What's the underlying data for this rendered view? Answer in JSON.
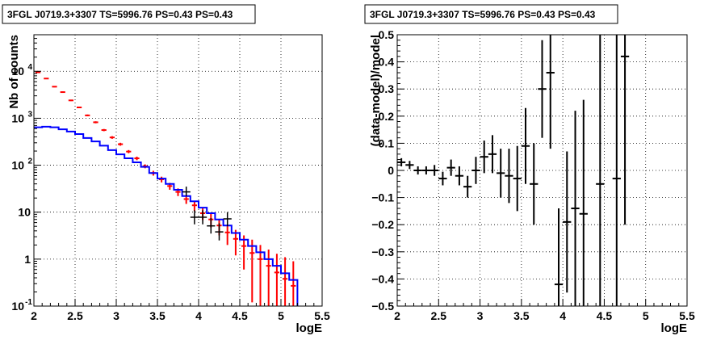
{
  "chart_data": [
    {
      "type": "line",
      "title": "3FGL J0719.3+3307 TS=5996.76 PS=0.43 PS=0.43",
      "xlabel": "logE",
      "ylabel": "Nb of counts",
      "xlim": [
        2,
        5.5
      ],
      "ylim": [
        0.1,
        60000
      ],
      "yscale": "log",
      "grid": true,
      "x_ticks": [
        "2",
        "2.5",
        "3",
        "3.5",
        "4",
        "4.5",
        "5",
        "5.5"
      ],
      "y_ticks": [
        {
          "value": 0.1,
          "base": "10",
          "exp": "-1"
        },
        {
          "value": 1,
          "base": "1",
          "exp": ""
        },
        {
          "value": 10,
          "base": "10",
          "exp": ""
        },
        {
          "value": 100,
          "base": "10",
          "exp": "2"
        },
        {
          "value": 1000,
          "base": "10",
          "exp": "3"
        },
        {
          "value": 10000,
          "base": "10",
          "exp": "4"
        }
      ],
      "colors": {
        "model": "#ff0000",
        "source": "#0000ff",
        "data": "#000000"
      },
      "bin_edges": [
        2.0,
        2.1,
        2.2,
        2.3,
        2.4,
        2.5,
        2.6,
        2.7,
        2.8,
        2.9,
        3.0,
        3.1,
        3.2,
        3.3,
        3.4,
        3.5,
        3.6,
        3.7,
        3.8,
        3.9,
        4.0,
        4.1,
        4.2,
        4.3,
        4.4,
        4.5,
        4.6,
        4.7,
        4.8,
        4.9,
        5.0,
        5.1,
        5.2
      ],
      "series": [
        {
          "role": "model",
          "x": [
            2.05,
            2.15,
            2.25,
            2.35,
            2.45,
            2.55,
            2.65,
            2.75,
            2.85,
            2.95,
            3.05,
            3.15,
            3.25,
            3.35,
            3.45,
            3.55,
            3.65,
            3.75,
            3.85,
            3.95,
            4.05,
            4.15,
            4.25,
            4.35,
            4.45,
            4.55,
            4.65,
            4.75,
            4.85,
            4.95,
            5.05,
            5.15
          ],
          "values": [
            9500,
            7000,
            4700,
            3600,
            2400,
            1700,
            1150,
            820,
            560,
            390,
            280,
            195,
            140,
            95,
            68,
            50,
            36,
            27,
            19,
            14,
            9.5,
            7,
            5.2,
            3.7,
            2.7,
            1.9,
            1.35,
            1.0,
            0.72,
            0.52,
            0.38,
            0.27
          ],
          "err_low": [
            9200,
            6800,
            4550,
            3480,
            2320,
            1640,
            1100,
            780,
            530,
            365,
            260,
            180,
            128,
            86,
            60,
            43,
            30,
            22,
            15,
            10.5,
            6.8,
            4.7,
            3.2,
            2.0,
            1.2,
            0.6,
            0.12,
            0.1,
            0.1,
            0.1,
            0.1,
            0.1
          ],
          "err_high": [
            9800,
            7200,
            4850,
            3720,
            2480,
            1760,
            1200,
            860,
            590,
            415,
            300,
            210,
            152,
            104,
            76,
            57,
            42,
            32,
            23,
            17.5,
            12.2,
            9.3,
            7.2,
            5.4,
            4.2,
            3.2,
            2.6,
            2.0,
            1.6,
            1.3,
            1.1,
            0.9
          ]
        },
        {
          "role": "source",
          "values": [
            640,
            660,
            640,
            580,
            520,
            460,
            380,
            320,
            260,
            210,
            170,
            140,
            115,
            92,
            68,
            52,
            40,
            30,
            22,
            17,
            12.5,
            9.5,
            7,
            5.2,
            3.6,
            2.6,
            1.9,
            1.4,
            1.0,
            0.72,
            0.5,
            0.36
          ]
        },
        {
          "role": "data",
          "x": [
            3.85,
            3.95,
            4.05,
            4.15,
            4.25,
            4.35
          ],
          "values": [
            27,
            7.8,
            7.8,
            5.1,
            3.8,
            7.2
          ],
          "err_low": [
            22,
            5.5,
            5.5,
            3.5,
            2.5,
            5
          ],
          "err_high": [
            35,
            11,
            11,
            7.5,
            5.8,
            10
          ]
        }
      ]
    },
    {
      "type": "scatter",
      "title": "3FGL J0719.3+3307 TS=5996.76 PS=0.43 PS=0.43",
      "xlabel": "logE",
      "ylabel": "(data-model)/model",
      "xlim": [
        2,
        5.5
      ],
      "ylim": [
        -0.5,
        0.5
      ],
      "grid": true,
      "x_ticks": [
        "2",
        "2.5",
        "3",
        "3.5",
        "4",
        "4.5",
        "5",
        "5.5"
      ],
      "y_ticks": [
        "−0.5",
        "−0.4",
        "−0.3",
        "−0.2",
        "−0.1",
        "0",
        "0.1",
        "0.2",
        "0.3",
        "0.4",
        "0.5"
      ],
      "color": "#000000",
      "points": [
        {
          "x": 2.05,
          "y": 0.03,
          "lo": 0.015,
          "hi": 0.045
        },
        {
          "x": 2.15,
          "y": 0.02,
          "lo": 0.005,
          "hi": 0.035
        },
        {
          "x": 2.25,
          "y": 0.0,
          "lo": -0.015,
          "hi": 0.015
        },
        {
          "x": 2.35,
          "y": 0.0,
          "lo": -0.015,
          "hi": 0.015
        },
        {
          "x": 2.45,
          "y": 0.0,
          "lo": -0.02,
          "hi": 0.02
        },
        {
          "x": 2.55,
          "y": -0.03,
          "lo": -0.055,
          "hi": -0.005
        },
        {
          "x": 2.65,
          "y": 0.01,
          "lo": -0.02,
          "hi": 0.04
        },
        {
          "x": 2.75,
          "y": -0.02,
          "lo": -0.055,
          "hi": 0.015
        },
        {
          "x": 2.85,
          "y": -0.06,
          "lo": -0.1,
          "hi": -0.02
        },
        {
          "x": 2.95,
          "y": 0.0,
          "lo": -0.05,
          "hi": 0.05
        },
        {
          "x": 3.05,
          "y": 0.05,
          "lo": -0.01,
          "hi": 0.11
        },
        {
          "x": 3.15,
          "y": 0.06,
          "lo": -0.01,
          "hi": 0.13
        },
        {
          "x": 3.25,
          "y": -0.01,
          "lo": -0.1,
          "hi": 0.08
        },
        {
          "x": 3.35,
          "y": -0.02,
          "lo": -0.12,
          "hi": 0.08
        },
        {
          "x": 3.45,
          "y": -0.03,
          "lo": -0.15,
          "hi": 0.09
        },
        {
          "x": 3.55,
          "y": 0.09,
          "lo": -0.05,
          "hi": 0.23
        },
        {
          "x": 3.65,
          "y": -0.05,
          "lo": -0.2,
          "hi": 0.1
        },
        {
          "x": 3.75,
          "y": 0.3,
          "lo": 0.12,
          "hi": 0.48
        },
        {
          "x": 3.85,
          "y": 0.36,
          "lo": 0.08,
          "hi": 0.64
        },
        {
          "x": 3.95,
          "y": -0.42,
          "lo": -0.7,
          "hi": -0.14
        },
        {
          "x": 4.05,
          "y": -0.19,
          "lo": -0.45,
          "hi": 0.07
        },
        {
          "x": 4.15,
          "y": -0.14,
          "lo": -0.5,
          "hi": 0.22
        },
        {
          "x": 4.25,
          "y": -0.16,
          "lo": -0.5,
          "hi": 0.26
        },
        {
          "x": 4.45,
          "y": -0.05,
          "lo": -0.75,
          "hi": 0.6
        },
        {
          "x": 4.65,
          "y": -0.03,
          "lo": -0.8,
          "hi": 0.6
        },
        {
          "x": 4.75,
          "y": 0.42,
          "lo": -0.2,
          "hi": 1.0
        }
      ]
    }
  ]
}
